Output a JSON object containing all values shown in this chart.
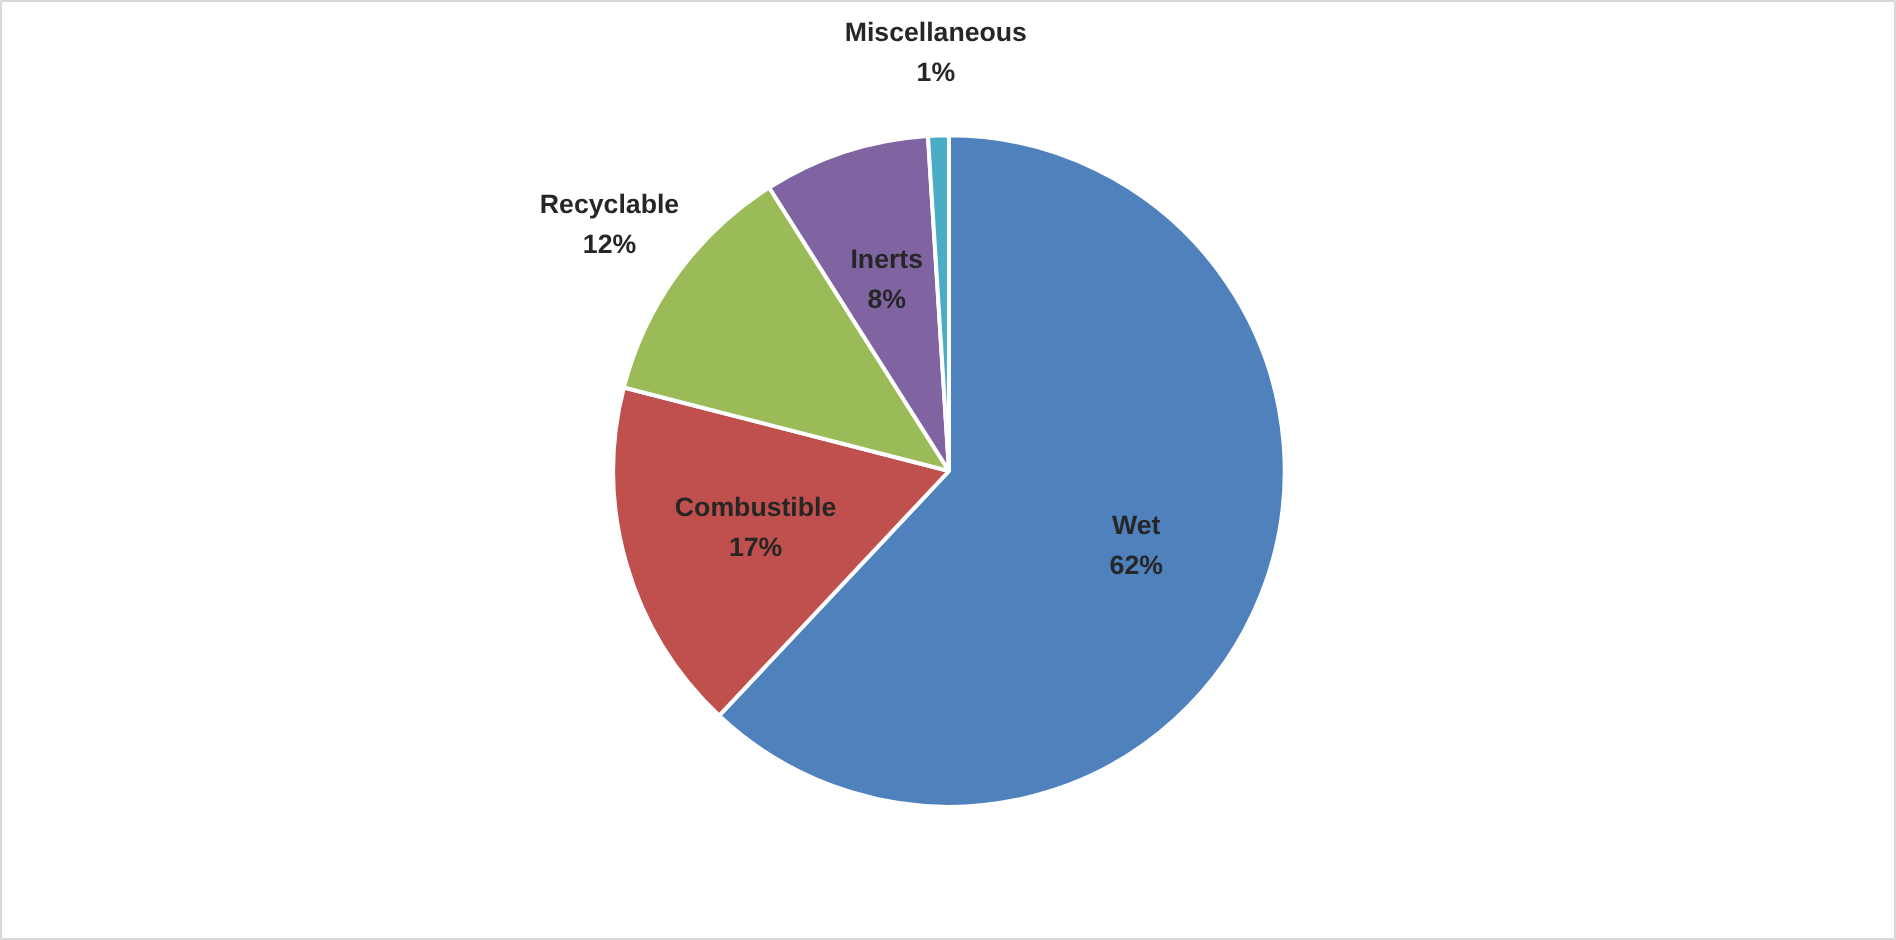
{
  "chart_data": {
    "type": "pie",
    "categories": [
      "Wet",
      "Combustible",
      "Recyclable",
      "Inerts",
      "Miscellaneous"
    ],
    "values": [
      62,
      17,
      12,
      8,
      1
    ],
    "colors": [
      "#4f81bd",
      "#c0504d",
      "#9bbb59",
      "#8064a2",
      "#4bacc6"
    ],
    "value_labels": [
      "62%",
      "17%",
      "12%",
      "8%",
      "1%"
    ]
  }
}
